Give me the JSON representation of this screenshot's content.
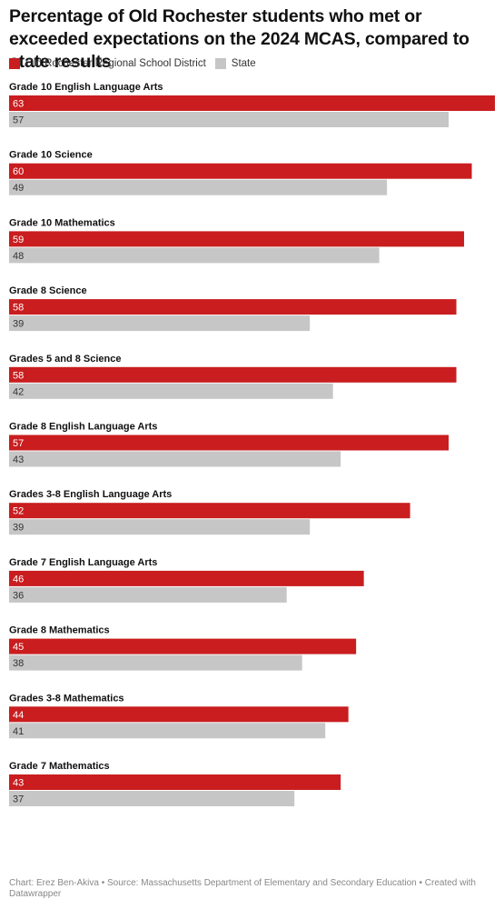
{
  "title": "Percentage of Old Rochester students who met or exceeded expectations on the 2024 MCAS, compared to state results",
  "footer": "Chart: Erez Ben-Akiva • Source: Massachusetts Department of Elementary and Secondary Education • Created with Datawrapper",
  "colors": {
    "district": "#c91d1f",
    "state": "#c6c6c6"
  },
  "chart_data": {
    "type": "bar",
    "orientation": "horizontal",
    "categories": [
      "Grade 10 English Language Arts",
      "Grade 10 Science",
      "Grade 10 Mathematics",
      "Grade 8 Science",
      "Grades 5 and 8 Science",
      "Grade 8 English Language Arts",
      "Grades 3-8 English Language Arts",
      "Grade 7 English Language Arts",
      "Grade 8 Mathematics",
      "Grades 3-8 Mathematics",
      "Grade 7 Mathematics"
    ],
    "series": [
      {
        "name": "Old Rochester Regional School District",
        "values": [
          63,
          60,
          59,
          58,
          58,
          57,
          52,
          46,
          45,
          44,
          43
        ]
      },
      {
        "name": "State",
        "values": [
          57,
          49,
          48,
          39,
          42,
          43,
          39,
          36,
          38,
          41,
          37
        ]
      }
    ],
    "xlim": [
      0,
      63
    ],
    "legend": "top-left",
    "grid": false
  }
}
